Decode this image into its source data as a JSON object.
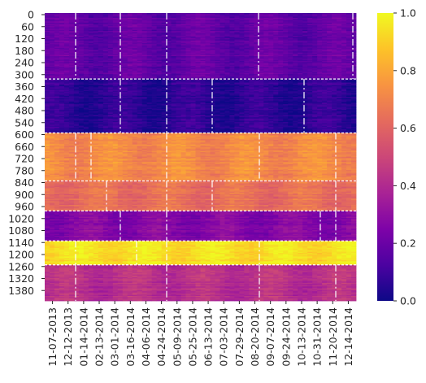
{
  "chart_data": {
    "type": "heatmap",
    "title": "",
    "xlabel": "",
    "ylabel": "",
    "colormap": "plasma",
    "value_range": [
      0.0,
      1.0
    ],
    "y_axis": {
      "ticks": [
        "0",
        "60",
        "120",
        "180",
        "240",
        "300",
        "360",
        "420",
        "480",
        "540",
        "600",
        "660",
        "720",
        "780",
        "840",
        "900",
        "960",
        "1020",
        "1080",
        "1140",
        "1200",
        "1260",
        "1320",
        "1380"
      ],
      "range": [
        0,
        1440
      ]
    },
    "x_axis": {
      "ticks": [
        "11-07-2013",
        "12-12-2013",
        "01-14-2014",
        "02-13-2014",
        "03-01-2014",
        "03-16-2014",
        "04-06-2014",
        "04-24-2014",
        "05-09-2014",
        "05-25-2014",
        "06-13-2014",
        "07-03-2014",
        "07-29-2014",
        "08-20-2014",
        "09-07-2014",
        "09-24-2014",
        "10-13-2014",
        "10-31-2014",
        "11-20-2014",
        "12-14-2014"
      ]
    },
    "colorbar": {
      "ticks": [
        "0.0",
        "0.2",
        "0.4",
        "0.6",
        "0.8",
        "1.0"
      ],
      "range": [
        0.0,
        1.0
      ]
    },
    "row_bands": [
      {
        "start": 0,
        "end": 330,
        "value": 0.18
      },
      {
        "start": 330,
        "end": 600,
        "value": 0.06
      },
      {
        "start": 600,
        "end": 840,
        "value": 0.72
      },
      {
        "start": 840,
        "end": 990,
        "value": 0.64
      },
      {
        "start": 990,
        "end": 1140,
        "value": 0.27
      },
      {
        "start": 1140,
        "end": 1260,
        "value": 0.94
      },
      {
        "start": 1260,
        "end": 1440,
        "value": 0.42
      }
    ],
    "gridlines_dashed": true
  }
}
